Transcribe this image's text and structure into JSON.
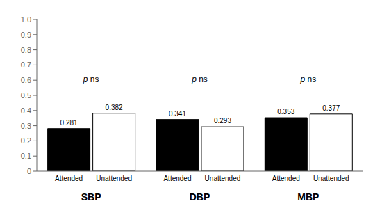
{
  "chart_data": {
    "type": "bar",
    "categories": [
      "SBP",
      "DBP",
      "MBP"
    ],
    "series": [
      {
        "name": "Attended",
        "color": "#000000",
        "values": [
          0.281,
          0.341,
          0.353
        ]
      },
      {
        "name": "Unattended",
        "color": "#ffffff",
        "values": [
          0.382,
          0.293,
          0.377
        ]
      }
    ],
    "edge_color": "#000000",
    "ylim": [
      0,
      1.0
    ],
    "yticks": [
      0,
      0.1,
      0.2,
      0.3,
      0.4,
      0.5,
      0.6,
      0.7,
      0.8,
      0.9,
      {
        "value": 1,
        "label": "1.0"
      }
    ],
    "data_labels": true,
    "grid": false,
    "annotations": [
      {
        "category": "SBP",
        "y": 0.6,
        "texts": [
          "p",
          "ns"
        ]
      },
      {
        "category": "DBP",
        "y": 0.6,
        "texts": [
          "p",
          "ns"
        ]
      },
      {
        "category": "MBP",
        "y": 0.6,
        "texts": [
          "p",
          "ns"
        ]
      }
    ]
  }
}
